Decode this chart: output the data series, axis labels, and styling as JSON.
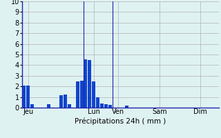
{
  "bar_values": [
    2.1,
    2.05,
    0.3,
    0,
    0,
    0,
    0.35,
    0,
    0,
    1.2,
    1.25,
    0.3,
    0,
    2.5,
    2.55,
    4.55,
    4.45,
    2.5,
    1.0,
    0.4,
    0.35,
    0.25,
    0,
    0,
    0,
    0.2,
    0,
    0,
    0,
    0,
    0,
    0,
    0,
    0,
    0,
    0,
    0,
    0,
    0,
    0,
    0,
    0,
    0,
    0,
    0,
    0,
    0,
    0
  ],
  "n_bars": 48,
  "bar_color": "#1144cc",
  "background_color": "#dff2f2",
  "grid_color": "#b0b0b0",
  "axis_line_color": "#2222aa",
  "xlabel": "Précipitations 24h ( mm )",
  "ylim": [
    0,
    10
  ],
  "yticks": [
    0,
    1,
    2,
    3,
    4,
    5,
    6,
    7,
    8,
    9,
    10
  ],
  "day_labels": [
    "Jeu",
    "Lun",
    "Ven",
    "Sam",
    "Dim"
  ],
  "day_tick_positions": [
    1,
    17,
    23,
    33,
    43
  ],
  "vline_positions": [
    14.5,
    21.5
  ],
  "label_fontsize": 7.5,
  "tick_fontsize": 7
}
